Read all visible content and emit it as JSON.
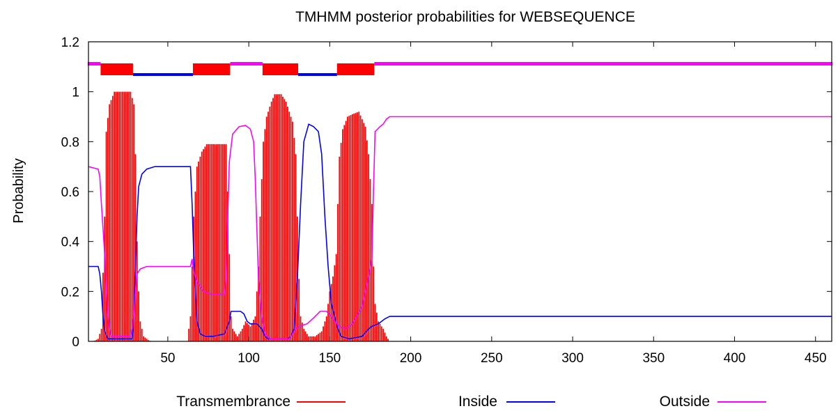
{
  "chart_data": {
    "type": "line",
    "title": "TMHMM posterior probabilities for WEBSEQUENCE",
    "xlabel": "",
    "ylabel": "Probability",
    "xlim": [
      1,
      460
    ],
    "ylim": [
      0,
      1.2
    ],
    "x_ticks": [
      50,
      100,
      150,
      200,
      250,
      300,
      350,
      400,
      450
    ],
    "y_ticks": [
      {
        "value": 0,
        "label": "0"
      },
      {
        "value": 0.2,
        "label": "0.2"
      },
      {
        "value": 0.4,
        "label": "0.4"
      },
      {
        "value": 0.6,
        "label": "0.6"
      },
      {
        "value": 0.8,
        "label": "0.8"
      },
      {
        "value": 1.0,
        "label": "1"
      },
      {
        "value": 1.2,
        "label": "1.2"
      }
    ],
    "grid": false,
    "legend_position": "bottom",
    "series": [
      {
        "name": "Transmembrance",
        "style": "impulses",
        "color": "#ff0000",
        "points": [
          [
            1,
            0
          ],
          [
            4,
            0
          ],
          [
            7,
            0.01
          ],
          [
            9,
            0.05
          ],
          [
            11,
            0.5
          ],
          [
            12,
            0.84
          ],
          [
            14,
            0.95
          ],
          [
            17,
            1.0
          ],
          [
            27,
            1.0
          ],
          [
            29,
            0.95
          ],
          [
            30,
            0.75
          ],
          [
            31,
            0.4
          ],
          [
            32,
            0.2
          ],
          [
            33,
            0.08
          ],
          [
            35,
            0.02
          ],
          [
            38,
            0.005
          ],
          [
            40,
            0
          ],
          [
            62,
            0
          ],
          [
            64,
            0.1
          ],
          [
            65,
            0.3
          ],
          [
            66,
            0.5
          ],
          [
            68,
            0.7
          ],
          [
            71,
            0.76
          ],
          [
            74,
            0.79
          ],
          [
            86,
            0.79
          ],
          [
            87,
            0.6
          ],
          [
            88,
            0.35
          ],
          [
            89,
            0.1
          ],
          [
            90,
            0.05
          ],
          [
            93,
            0.02
          ],
          [
            96,
            0.05
          ],
          [
            98,
            0.08
          ],
          [
            101,
            0.06
          ],
          [
            104,
            0.1
          ],
          [
            105,
            0.2
          ],
          [
            106,
            0.3
          ],
          [
            107,
            0.5
          ],
          [
            109,
            0.8
          ],
          [
            111,
            0.9
          ],
          [
            114,
            0.96
          ],
          [
            116,
            0.99
          ],
          [
            120,
            0.99
          ],
          [
            123,
            0.96
          ],
          [
            127,
            0.88
          ],
          [
            129,
            0.75
          ],
          [
            130,
            0.5
          ],
          [
            131,
            0.25
          ],
          [
            132,
            0.1
          ],
          [
            134,
            0.05
          ],
          [
            137,
            0.02
          ],
          [
            141,
            0.02
          ],
          [
            145,
            0.04
          ],
          [
            148,
            0.1
          ],
          [
            150,
            0.2
          ],
          [
            152,
            0.26
          ],
          [
            154,
            0.35
          ],
          [
            155,
            0.55
          ],
          [
            156,
            0.74
          ],
          [
            158,
            0.85
          ],
          [
            161,
            0.9
          ],
          [
            164,
            0.91
          ],
          [
            168,
            0.92
          ],
          [
            172,
            0.86
          ],
          [
            174,
            0.75
          ],
          [
            175,
            0.65
          ],
          [
            176,
            0.55
          ],
          [
            177,
            0.3
          ],
          [
            178,
            0.15
          ],
          [
            180,
            0.08
          ],
          [
            183,
            0.05
          ],
          [
            185,
            0.02
          ],
          [
            187,
            0
          ],
          [
            460,
            0
          ]
        ]
      },
      {
        "name": "Inside",
        "style": "line",
        "color": "#0000ff",
        "points": [
          [
            1,
            0.3
          ],
          [
            7,
            0.3
          ],
          [
            8,
            0.27
          ],
          [
            9,
            0.2
          ],
          [
            10,
            0.1
          ],
          [
            11,
            0.04
          ],
          [
            13,
            0.01
          ],
          [
            28,
            0.01
          ],
          [
            29,
            0.1
          ],
          [
            30,
            0.3
          ],
          [
            31,
            0.5
          ],
          [
            32,
            0.62
          ],
          [
            34,
            0.67
          ],
          [
            37,
            0.69
          ],
          [
            42,
            0.7
          ],
          [
            64,
            0.7
          ],
          [
            65,
            0.55
          ],
          [
            66,
            0.35
          ],
          [
            67,
            0.2
          ],
          [
            68,
            0.08
          ],
          [
            70,
            0.03
          ],
          [
            73,
            0.02
          ],
          [
            78,
            0.02
          ],
          [
            85,
            0.03
          ],
          [
            88,
            0.08
          ],
          [
            89,
            0.12
          ],
          [
            95,
            0.12
          ],
          [
            97,
            0.11
          ],
          [
            99,
            0.08
          ],
          [
            101,
            0.07
          ],
          [
            105,
            0.07
          ],
          [
            108,
            0.05
          ],
          [
            110,
            0.02
          ],
          [
            112,
            0.01
          ],
          [
            124,
            0.01
          ],
          [
            126,
            0.02
          ],
          [
            128,
            0.05
          ],
          [
            130,
            0.25
          ],
          [
            132,
            0.55
          ],
          [
            134,
            0.8
          ],
          [
            137,
            0.87
          ],
          [
            140,
            0.86
          ],
          [
            143,
            0.84
          ],
          [
            145,
            0.75
          ],
          [
            147,
            0.5
          ],
          [
            149,
            0.3
          ],
          [
            151,
            0.15
          ],
          [
            153,
            0.1
          ],
          [
            155,
            0.05
          ],
          [
            157,
            0.02
          ],
          [
            162,
            0.01
          ],
          [
            170,
            0.02
          ],
          [
            174,
            0.05
          ],
          [
            176,
            0.06
          ],
          [
            180,
            0.07
          ],
          [
            184,
            0.09
          ],
          [
            187,
            0.1
          ],
          [
            460,
            0.1
          ]
        ]
      },
      {
        "name": "Outside",
        "style": "line",
        "color": "#ff00ff",
        "points": [
          [
            1,
            0.7
          ],
          [
            7,
            0.69
          ],
          [
            8,
            0.66
          ],
          [
            9,
            0.55
          ],
          [
            10,
            0.45
          ],
          [
            11,
            0.35
          ],
          [
            12,
            0.2
          ],
          [
            13,
            0.1
          ],
          [
            14,
            0.05
          ],
          [
            15,
            0.02
          ],
          [
            27,
            0.02
          ],
          [
            28,
            0.05
          ],
          [
            29,
            0.1
          ],
          [
            30,
            0.2
          ],
          [
            31,
            0.27
          ],
          [
            33,
            0.29
          ],
          [
            37,
            0.3
          ],
          [
            64,
            0.3
          ],
          [
            65,
            0.33
          ],
          [
            66,
            0.28
          ],
          [
            68,
            0.24
          ],
          [
            72,
            0.2
          ],
          [
            76,
            0.19
          ],
          [
            85,
            0.19
          ],
          [
            86,
            0.25
          ],
          [
            87,
            0.5
          ],
          [
            88,
            0.72
          ],
          [
            90,
            0.83
          ],
          [
            94,
            0.86
          ],
          [
            98,
            0.865
          ],
          [
            101,
            0.85
          ],
          [
            103,
            0.8
          ],
          [
            104,
            0.65
          ],
          [
            105,
            0.45
          ],
          [
            106,
            0.25
          ],
          [
            108,
            0.1
          ],
          [
            110,
            0.03
          ],
          [
            113,
            0.01
          ],
          [
            125,
            0.01
          ],
          [
            127,
            0.03
          ],
          [
            129,
            0.05
          ],
          [
            131,
            0.06
          ],
          [
            136,
            0.07
          ],
          [
            141,
            0.1
          ],
          [
            144,
            0.12
          ],
          [
            148,
            0.12
          ],
          [
            151,
            0.1
          ],
          [
            153,
            0.08
          ],
          [
            156,
            0.06
          ],
          [
            160,
            0.05
          ],
          [
            164,
            0.07
          ],
          [
            170,
            0.14
          ],
          [
            174,
            0.26
          ],
          [
            176,
            0.33
          ],
          [
            177,
            0.6
          ],
          [
            178,
            0.84
          ],
          [
            181,
            0.86
          ],
          [
            183,
            0.87
          ],
          [
            185,
            0.89
          ],
          [
            187,
            0.9
          ],
          [
            460,
            0.9
          ]
        ]
      }
    ],
    "topology_bar": {
      "segments": [
        {
          "type": "outside",
          "start": 1,
          "end": 8
        },
        {
          "type": "tm",
          "start": 9,
          "end": 28
        },
        {
          "type": "inside",
          "start": 29,
          "end": 65
        },
        {
          "type": "tm",
          "start": 66,
          "end": 88
        },
        {
          "type": "outside",
          "start": 89,
          "end": 108
        },
        {
          "type": "tm",
          "start": 109,
          "end": 130
        },
        {
          "type": "inside",
          "start": 131,
          "end": 154
        },
        {
          "type": "tm",
          "start": 155,
          "end": 177
        },
        {
          "type": "outside",
          "start": 178,
          "end": 460
        }
      ],
      "tm_color": "#ff0000",
      "inside_color": "#0000ff",
      "outside_color": "#ff00ff"
    }
  }
}
